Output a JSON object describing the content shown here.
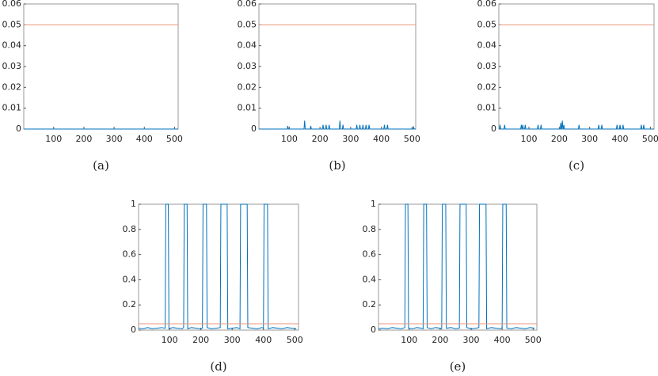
{
  "chart_data": [
    {
      "type": "line",
      "caption": "(a)",
      "xlim": [
        1,
        512
      ],
      "ylim": [
        0,
        0.06
      ],
      "xticks": [
        100,
        200,
        300,
        400,
        500
      ],
      "yticks": [
        0,
        0.01,
        0.02,
        0.03,
        0.04,
        0.05,
        0.06
      ],
      "series": [
        {
          "color": "#0072bd",
          "x": [
            1,
            512
          ],
          "values": [
            0,
            0
          ]
        },
        {
          "color": "#e8957a",
          "x": [
            1,
            512
          ],
          "values": [
            0.05,
            0.05
          ]
        }
      ]
    },
    {
      "type": "line",
      "caption": "(b)",
      "xlim": [
        1,
        512
      ],
      "ylim": [
        0,
        0.06
      ],
      "xticks": [
        100,
        200,
        300,
        400,
        500
      ],
      "yticks": [
        0,
        0.01,
        0.02,
        0.03,
        0.04,
        0.05,
        0.06
      ],
      "series": [
        {
          "color": "#0072bd",
          "x": [
            1,
            93,
            95,
            97,
            148,
            150,
            152,
            168,
            170,
            172,
            208,
            210,
            212,
            218,
            220,
            222,
            228,
            230,
            232,
            263,
            265,
            267,
            273,
            275,
            277,
            318,
            320,
            322,
            328,
            330,
            332,
            338,
            340,
            342,
            348,
            350,
            352,
            358,
            360,
            362,
            408,
            410,
            412,
            418,
            420,
            422,
            503,
            505,
            507,
            512
          ],
          "values": [
            0,
            0,
            0.0015,
            0,
            0,
            0.004,
            0,
            0,
            0.0015,
            0,
            0,
            0.002,
            0,
            0,
            0.002,
            0,
            0,
            0.002,
            0,
            0,
            0.004,
            0,
            0,
            0.002,
            0,
            0,
            0.002,
            0,
            0,
            0.002,
            0,
            0,
            0.002,
            0,
            0,
            0.002,
            0,
            0,
            0.002,
            0,
            0,
            0.002,
            0,
            0,
            0.002,
            0,
            0,
            0.001,
            0,
            0
          ]
        },
        {
          "color": "#e8957a",
          "x": [
            1,
            512
          ],
          "values": [
            0.05,
            0.05
          ]
        }
      ]
    },
    {
      "type": "line",
      "caption": "(c)",
      "xlim": [
        1,
        512
      ],
      "ylim": [
        0,
        0.06
      ],
      "xticks": [
        100,
        200,
        300,
        400,
        500
      ],
      "yticks": [
        0,
        0.01,
        0.02,
        0.03,
        0.04,
        0.05,
        0.06
      ],
      "series": [
        {
          "color": "#0072bd",
          "x": [
            1,
            3,
            5,
            7,
            18,
            20,
            22,
            73,
            75,
            77,
            78,
            80,
            82,
            86,
            88,
            90,
            128,
            130,
            132,
            138,
            140,
            142,
            203,
            205,
            207,
            208,
            210,
            212,
            213,
            215,
            217,
            263,
            265,
            267,
            328,
            330,
            332,
            338,
            340,
            342,
            388,
            390,
            392,
            398,
            400,
            402,
            408,
            410,
            412,
            468,
            470,
            472,
            476,
            478,
            480,
            512
          ],
          "values": [
            0,
            0,
            0.002,
            0,
            0,
            0.002,
            0,
            0,
            0.002,
            0,
            0,
            0.002,
            0,
            0,
            0.002,
            0,
            0,
            0.002,
            0,
            0,
            0.002,
            0,
            0,
            0.003,
            0,
            0,
            0.004,
            0,
            0,
            0.002,
            0,
            0,
            0.002,
            0,
            0,
            0.002,
            0,
            0,
            0.002,
            0,
            0,
            0.002,
            0,
            0,
            0.002,
            0,
            0,
            0.002,
            0,
            0,
            0.002,
            0,
            0,
            0.002,
            0,
            0
          ]
        },
        {
          "color": "#e8957a",
          "x": [
            1,
            512
          ],
          "values": [
            0.05,
            0.05
          ]
        }
      ]
    },
    {
      "type": "line",
      "caption": "(d)",
      "xlim": [
        1,
        512
      ],
      "ylim": [
        0,
        1
      ],
      "xticks": [
        100,
        200,
        300,
        400,
        500
      ],
      "yticks": [
        0,
        0.2,
        0.4,
        0.6,
        0.8,
        1
      ],
      "series": [
        {
          "color": "#0072bd",
          "x": [
            1,
            15,
            30,
            45,
            60,
            75,
            86,
            88,
            96,
            98,
            110,
            125,
            140,
            145,
            147,
            156,
            158,
            170,
            185,
            200,
            205,
            207,
            218,
            220,
            235,
            250,
            262,
            264,
            284,
            286,
            300,
            315,
            325,
            327,
            348,
            350,
            365,
            380,
            395,
            400,
            402,
            413,
            415,
            430,
            445,
            460,
            475,
            490,
            505
          ],
          "values": [
            0.015,
            0.01,
            0.02,
            0.01,
            0.015,
            0.02,
            0.015,
            1,
            1,
            0.01,
            0.02,
            0.015,
            0.01,
            0.02,
            1,
            1,
            0.01,
            0.02,
            0.015,
            0.01,
            0.015,
            1,
            1,
            0.02,
            0.01,
            0.015,
            0.02,
            1,
            1,
            0.01,
            0.015,
            0.02,
            0.01,
            1,
            1,
            0.02,
            0.015,
            0.01,
            0.02,
            0.015,
            1,
            1,
            0.01,
            0.02,
            0.015,
            0.01,
            0.02,
            0.015,
            0.01
          ]
        },
        {
          "color": "#e8957a",
          "x": [
            1,
            512
          ],
          "values": [
            0.05,
            0.05
          ]
        }
      ]
    },
    {
      "type": "line",
      "caption": "(e)",
      "xlim": [
        1,
        512
      ],
      "ylim": [
        0,
        1
      ],
      "xticks": [
        100,
        200,
        300,
        400,
        500
      ],
      "yticks": [
        0,
        0.2,
        0.4,
        0.6,
        0.8,
        1
      ],
      "series": [
        {
          "color": "#0072bd",
          "x": [
            1,
            15,
            30,
            45,
            60,
            75,
            86,
            88,
            96,
            98,
            110,
            125,
            140,
            145,
            147,
            156,
            158,
            170,
            185,
            200,
            205,
            207,
            218,
            220,
            235,
            250,
            262,
            264,
            284,
            286,
            300,
            315,
            325,
            327,
            348,
            350,
            365,
            380,
            395,
            400,
            402,
            413,
            415,
            430,
            445,
            460,
            475,
            490,
            505
          ],
          "values": [
            0.01,
            0.015,
            0.01,
            0.02,
            0.015,
            0.01,
            0.02,
            1,
            1,
            0.015,
            0.01,
            0.02,
            0.015,
            0.01,
            1,
            1,
            0.02,
            0.01,
            0.02,
            0.015,
            0.01,
            1,
            1,
            0.015,
            0.02,
            0.01,
            0.015,
            1,
            1,
            0.02,
            0.01,
            0.015,
            0.02,
            1,
            1,
            0.01,
            0.02,
            0.015,
            0.01,
            0.02,
            1,
            1,
            0.015,
            0.01,
            0.02,
            0.015,
            0.01,
            0.02,
            0.015
          ]
        },
        {
          "color": "#e8957a",
          "x": [
            1,
            512
          ],
          "values": [
            0.05,
            0.05
          ]
        }
      ]
    }
  ]
}
